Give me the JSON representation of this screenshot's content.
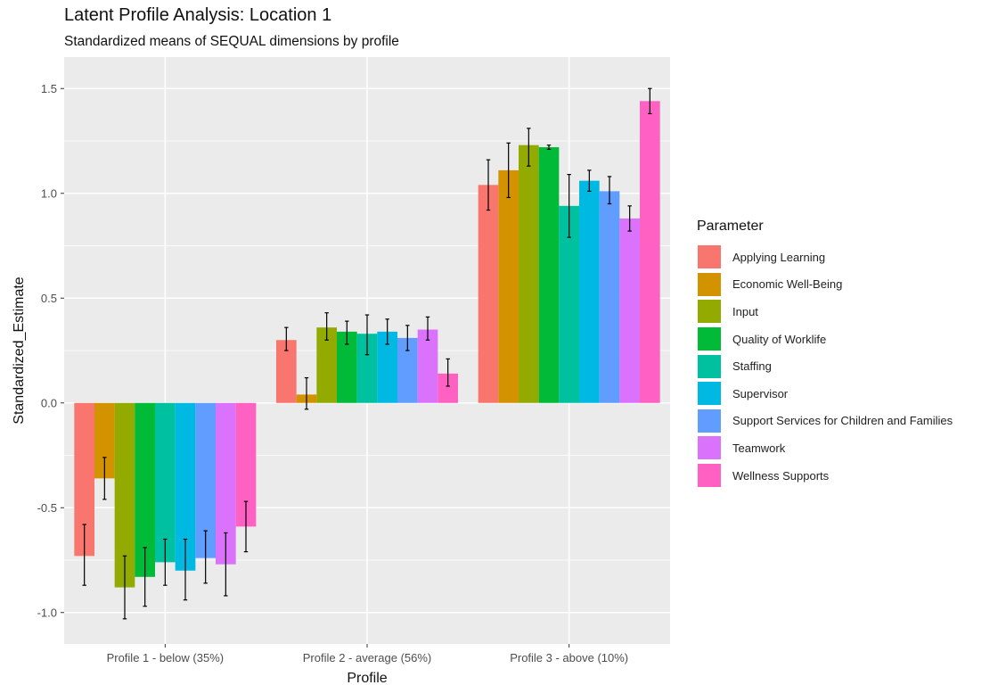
{
  "chart_data": {
    "type": "bar",
    "title": "Latent Profile Analysis: Location 1",
    "subtitle": "Standardized means of SEQUAL dimensions by profile",
    "xlabel": "Profile",
    "ylabel": "Standardized_Estimate",
    "ylim": [
      -1.15,
      1.65
    ],
    "yticks": [
      -1.0,
      -0.5,
      0.0,
      0.5,
      1.0,
      1.5
    ],
    "ytick_labels": [
      "-1.0",
      "-0.5",
      "0.0",
      "0.5",
      "1.0",
      "1.5"
    ],
    "grid": true,
    "legend": {
      "title": "Parameter",
      "position": "right"
    },
    "categories": [
      "Profile 1 - below (35%)",
      "Profile 2 - average (56%)",
      "Profile 3 - above (10%)"
    ],
    "series": [
      {
        "name": "Applying Learning",
        "color": "#F8766D",
        "values": [
          -0.73,
          0.3,
          1.04
        ],
        "err_low": [
          -0.87,
          0.25,
          0.92
        ],
        "err_high": [
          -0.58,
          0.36,
          1.16
        ]
      },
      {
        "name": "Economic Well-Being",
        "color": "#D39200",
        "values": [
          -0.36,
          0.04,
          1.11
        ],
        "err_low": [
          -0.46,
          -0.03,
          0.98
        ],
        "err_high": [
          -0.26,
          0.12,
          1.24
        ]
      },
      {
        "name": "Input",
        "color": "#93AA00",
        "values": [
          -0.88,
          0.36,
          1.23
        ],
        "err_low": [
          -1.03,
          0.3,
          1.13
        ],
        "err_high": [
          -0.73,
          0.43,
          1.31
        ]
      },
      {
        "name": "Quality of Worklife",
        "color": "#00BA38",
        "values": [
          -0.83,
          0.34,
          1.22
        ],
        "err_low": [
          -0.97,
          0.28,
          1.21
        ],
        "err_high": [
          -0.69,
          0.39,
          1.23
        ]
      },
      {
        "name": "Staffing",
        "color": "#00C19F",
        "values": [
          -0.76,
          0.33,
          0.94
        ],
        "err_low": [
          -0.87,
          0.23,
          0.79
        ],
        "err_high": [
          -0.65,
          0.42,
          1.09
        ]
      },
      {
        "name": "Supervisor",
        "color": "#00B9E3",
        "values": [
          -0.8,
          0.34,
          1.06
        ],
        "err_low": [
          -0.94,
          0.28,
          1.01
        ],
        "err_high": [
          -0.65,
          0.4,
          1.11
        ]
      },
      {
        "name": "Support Services for Children and Families",
        "color": "#619CFF",
        "values": [
          -0.74,
          0.31,
          1.01
        ],
        "err_low": [
          -0.86,
          0.25,
          0.95
        ],
        "err_high": [
          -0.61,
          0.37,
          1.08
        ]
      },
      {
        "name": "Teamwork",
        "color": "#DB72FB",
        "values": [
          -0.77,
          0.35,
          0.88
        ],
        "err_low": [
          -0.92,
          0.3,
          0.82
        ],
        "err_high": [
          -0.62,
          0.41,
          0.94
        ]
      },
      {
        "name": "Wellness Supports",
        "color": "#FF61C3",
        "values": [
          -0.59,
          0.14,
          1.44
        ],
        "err_low": [
          -0.71,
          0.08,
          1.38
        ],
        "err_high": [
          -0.47,
          0.21,
          1.5
        ]
      }
    ]
  }
}
